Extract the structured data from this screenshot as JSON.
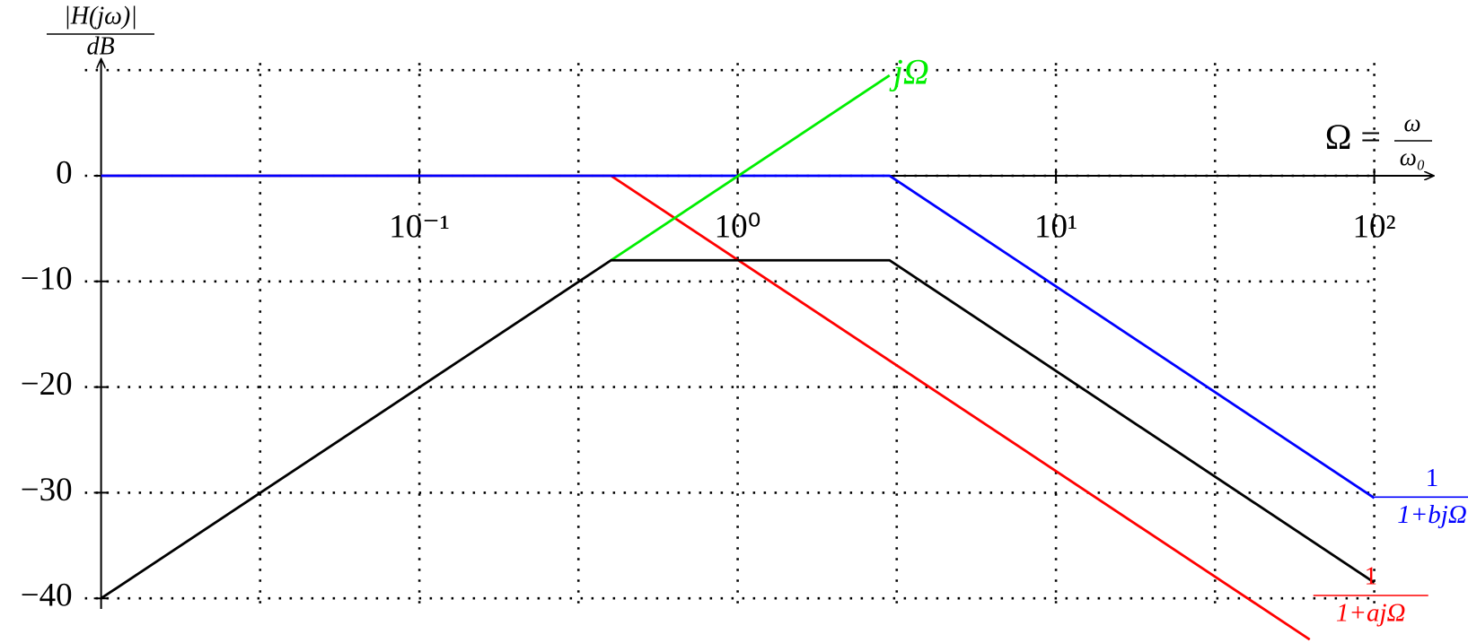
{
  "chart_data": {
    "type": "line",
    "xscale": "log",
    "xlim": [
      0.01,
      153
    ],
    "ylim": [
      -41,
      11
    ],
    "xticks": [
      {
        "value": 0.1,
        "label": "10⁻¹"
      },
      {
        "value": 1,
        "label": "10⁰"
      },
      {
        "value": 10,
        "label": "10¹"
      },
      {
        "value": 100,
        "label": "10²"
      }
    ],
    "yticks": [
      0,
      {
        "value": -10,
        "label": "−10"
      },
      {
        "value": -20,
        "label": "−20"
      },
      {
        "value": -30,
        "label": "−30"
      },
      {
        "value": -40,
        "label": "−40"
      }
    ],
    "xgrid": [
      0.0316,
      0.1,
      0.316,
      1,
      3.16,
      10,
      31.6,
      100
    ],
    "ygrid": [
      10,
      0,
      -10,
      -20,
      -30,
      -40
    ],
    "grid": true,
    "ylabel": [
      "|H(jω)|",
      "dB"
    ],
    "xlabel": {
      "lhs": "Ω =",
      "num": "ω",
      "den": "ω₀"
    },
    "series": [
      {
        "color": "#ff0000",
        "label_lines": [
          "1",
          "1+ajΩ"
        ],
        "x": [
          0.01,
          0.4,
          62.7
        ],
        "values": [
          0,
          0,
          -43.9
        ]
      },
      {
        "color": "#0000ff",
        "label_lines": [
          "1",
          "1+bjΩ"
        ],
        "x": [
          0.01,
          3,
          100
        ],
        "values": [
          0,
          0,
          -30.5
        ]
      },
      {
        "color": "#00ee00",
        "name": "jΩ",
        "x": [
          0.4,
          3
        ],
        "values": [
          -8,
          9.5
        ]
      },
      {
        "color": "#000000",
        "x": [
          0.01,
          0.4,
          3,
          100
        ],
        "values": [
          -40,
          -8,
          -8,
          -38.5
        ]
      }
    ]
  }
}
